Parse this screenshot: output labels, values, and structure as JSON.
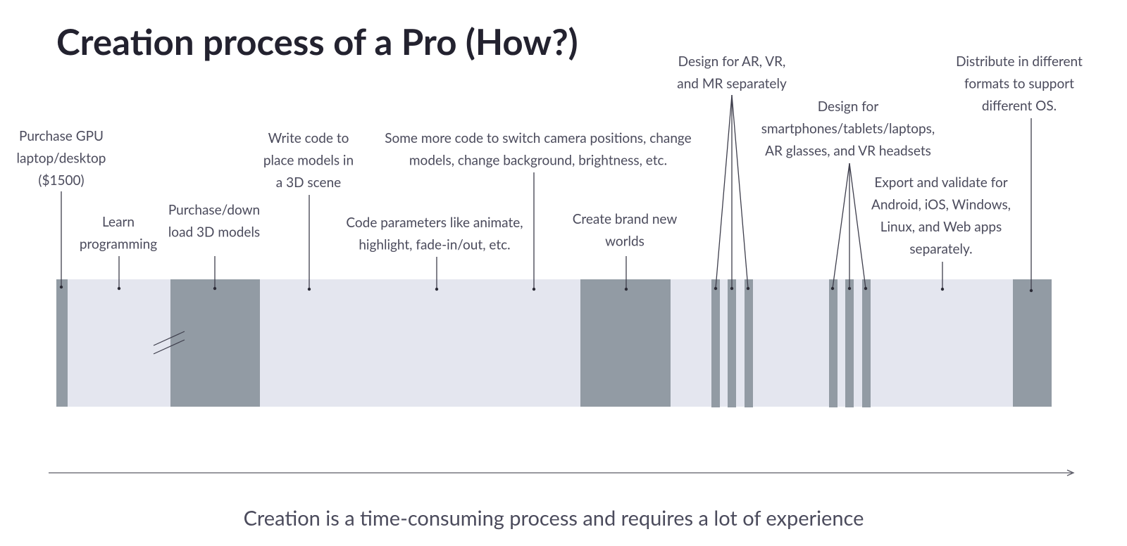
{
  "header": {
    "title": "Creation process of a Pro (How?)"
  },
  "annotations": [
    {
      "lines": [
        "Purchase GPU",
        "laptop/desktop",
        "($1500)"
      ]
    },
    {
      "lines": [
        "Learn",
        "programming"
      ]
    },
    {
      "lines": [
        "Purchase/down",
        "load 3D models"
      ]
    },
    {
      "lines": [
        "Write code to",
        "place models in",
        "a 3D scene"
      ]
    },
    {
      "lines": [
        "Code parameters like animate,",
        "highlight, fade-in/out, etc."
      ]
    },
    {
      "lines": [
        "Some more code to switch camera positions, change",
        "models, change background, brightness, etc."
      ]
    },
    {
      "lines": [
        "Create brand new",
        "worlds"
      ]
    },
    {
      "lines": [
        "Design for AR, VR,",
        "and MR separately"
      ]
    },
    {
      "lines": [
        "Design for",
        "smartphones/tablets/laptops,",
        "AR glasses, and VR headsets"
      ]
    },
    {
      "lines": [
        "Export and validate for",
        "Android, iOS, Windows,",
        "Linux, and Web apps",
        "separately."
      ]
    },
    {
      "lines": [
        "Distribute in different",
        "formats to support",
        "different OS."
      ]
    }
  ],
  "footer": {
    "caption": "Creation is a time-consuming process and requires a lot of experience"
  }
}
